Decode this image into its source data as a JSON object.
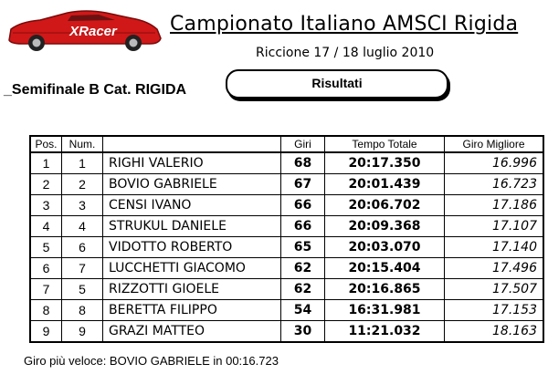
{
  "header": {
    "logo_text": "XRacer",
    "title": "Campionato Italiano AMSCI Rigida",
    "subtitle": "Riccione 17 / 18 luglio 2010"
  },
  "section": {
    "label": "_Semifinale B Cat. RIGIDA",
    "results_label": "Risultati"
  },
  "table": {
    "headers": [
      "Pos.",
      "Num.",
      "",
      "Giri",
      "Tempo Totale",
      "Giro Migliore"
    ],
    "rows": [
      {
        "pos": "1",
        "num": "1",
        "name": "RIGHI VALERIO",
        "giri": "68",
        "tempo": "20:17.350",
        "best": "16.996"
      },
      {
        "pos": "2",
        "num": "2",
        "name": "BOVIO GABRIELE",
        "giri": "67",
        "tempo": "20:01.439",
        "best": "16.723"
      },
      {
        "pos": "3",
        "num": "3",
        "name": "CENSI IVANO",
        "giri": "66",
        "tempo": "20:06.702",
        "best": "17.186"
      },
      {
        "pos": "4",
        "num": "4",
        "name": "STRUKUL DANIELE",
        "giri": "66",
        "tempo": "20:09.368",
        "best": "17.107"
      },
      {
        "pos": "5",
        "num": "6",
        "name": "VIDOTTO ROBERTO",
        "giri": "65",
        "tempo": "20:03.070",
        "best": "17.140"
      },
      {
        "pos": "6",
        "num": "7",
        "name": "LUCCHETTI GIACOMO",
        "giri": "62",
        "tempo": "20:15.404",
        "best": "17.496"
      },
      {
        "pos": "7",
        "num": "5",
        "name": "RIZZOTTI GIOELE",
        "giri": "62",
        "tempo": "20:16.865",
        "best": "17.507"
      },
      {
        "pos": "8",
        "num": "8",
        "name": "BERETTA FILIPPO",
        "giri": "54",
        "tempo": "16:31.981",
        "best": "17.153"
      },
      {
        "pos": "9",
        "num": "9",
        "name": "GRAZI MATTEO",
        "giri": "30",
        "tempo": "11:21.032",
        "best": "18.163"
      }
    ]
  },
  "footer": {
    "fastest_lap": "Giro più veloce:  BOVIO GABRIELE in 00:16.723"
  },
  "colors": {
    "car_red": "#d01818",
    "car_dark": "#7a0a0a"
  }
}
